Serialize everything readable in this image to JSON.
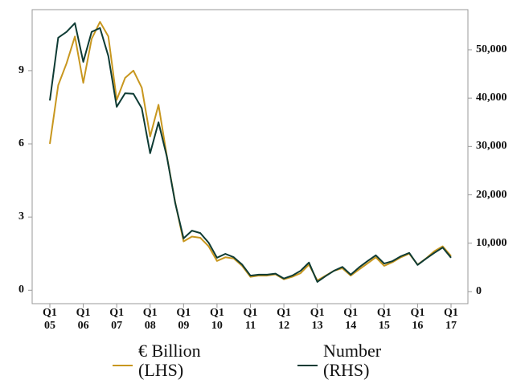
{
  "chart_data": {
    "type": "line",
    "categories": [
      "Q1\n05",
      null,
      null,
      null,
      "Q1\n06",
      null,
      null,
      null,
      "Q1\n07",
      null,
      null,
      null,
      "Q1\n08",
      null,
      null,
      null,
      "Q1\n09",
      null,
      null,
      null,
      "Q1\n10",
      null,
      null,
      null,
      "Q1\n11",
      null,
      null,
      null,
      "Q1\n12",
      null,
      null,
      null,
      "Q1\n13",
      null,
      null,
      null,
      "Q1\n14",
      null,
      null,
      null,
      "Q1\n15",
      null,
      null,
      null,
      "Q1\n16",
      null,
      null,
      null,
      "Q1\n17"
    ],
    "series": [
      {
        "name": "€ Billion\n(LHS)",
        "color": "#c8971f",
        "values": [
          6.0,
          8.4,
          9.3,
          10.4,
          8.5,
          10.3,
          11.0,
          10.4,
          7.8,
          8.7,
          9.0,
          8.3,
          6.3,
          7.6,
          5.5,
          3.6,
          2.0,
          2.2,
          2.15,
          1.8,
          1.2,
          1.35,
          1.3,
          1.0,
          0.55,
          0.6,
          0.6,
          0.65,
          0.45,
          0.55,
          0.7,
          1.05,
          0.4,
          0.6,
          0.8,
          0.9,
          0.6,
          0.85,
          1.1,
          1.35,
          1.0,
          1.15,
          1.35,
          1.5,
          1.05,
          1.3,
          1.6,
          1.8,
          1.4
        ]
      },
      {
        "name": "Number\n(RHS)",
        "color": "#0e3b34",
        "axis": "y2",
        "values": [
          39500,
          52500,
          53700,
          55500,
          47500,
          53700,
          54500,
          48700,
          38200,
          41000,
          40900,
          37900,
          28600,
          35000,
          27900,
          18300,
          11000,
          12600,
          12100,
          10100,
          7000,
          7800,
          7100,
          5600,
          3300,
          3500,
          3500,
          3700,
          2700,
          3300,
          4300,
          6000,
          2000,
          3200,
          4300,
          5100,
          3500,
          5000,
          6300,
          7500,
          5800,
          6300,
          7300,
          8000,
          5500,
          6800,
          8000,
          9100,
          7000
        ]
      }
    ],
    "ylim": [
      -0.55,
      11.5
    ],
    "yticks": [
      0,
      3,
      6,
      9
    ],
    "y2lim": [
      -2500,
      58300
    ],
    "y2ticks": [
      0,
      {
        "value": 10000,
        "label": "10,000"
      },
      {
        "value": 20000,
        "label": "20,000"
      },
      {
        "value": 30000,
        "label": "30,000"
      },
      {
        "value": 40000,
        "label": "40,000"
      },
      {
        "value": 50000,
        "label": "50,000"
      }
    ],
    "grid": false
  }
}
